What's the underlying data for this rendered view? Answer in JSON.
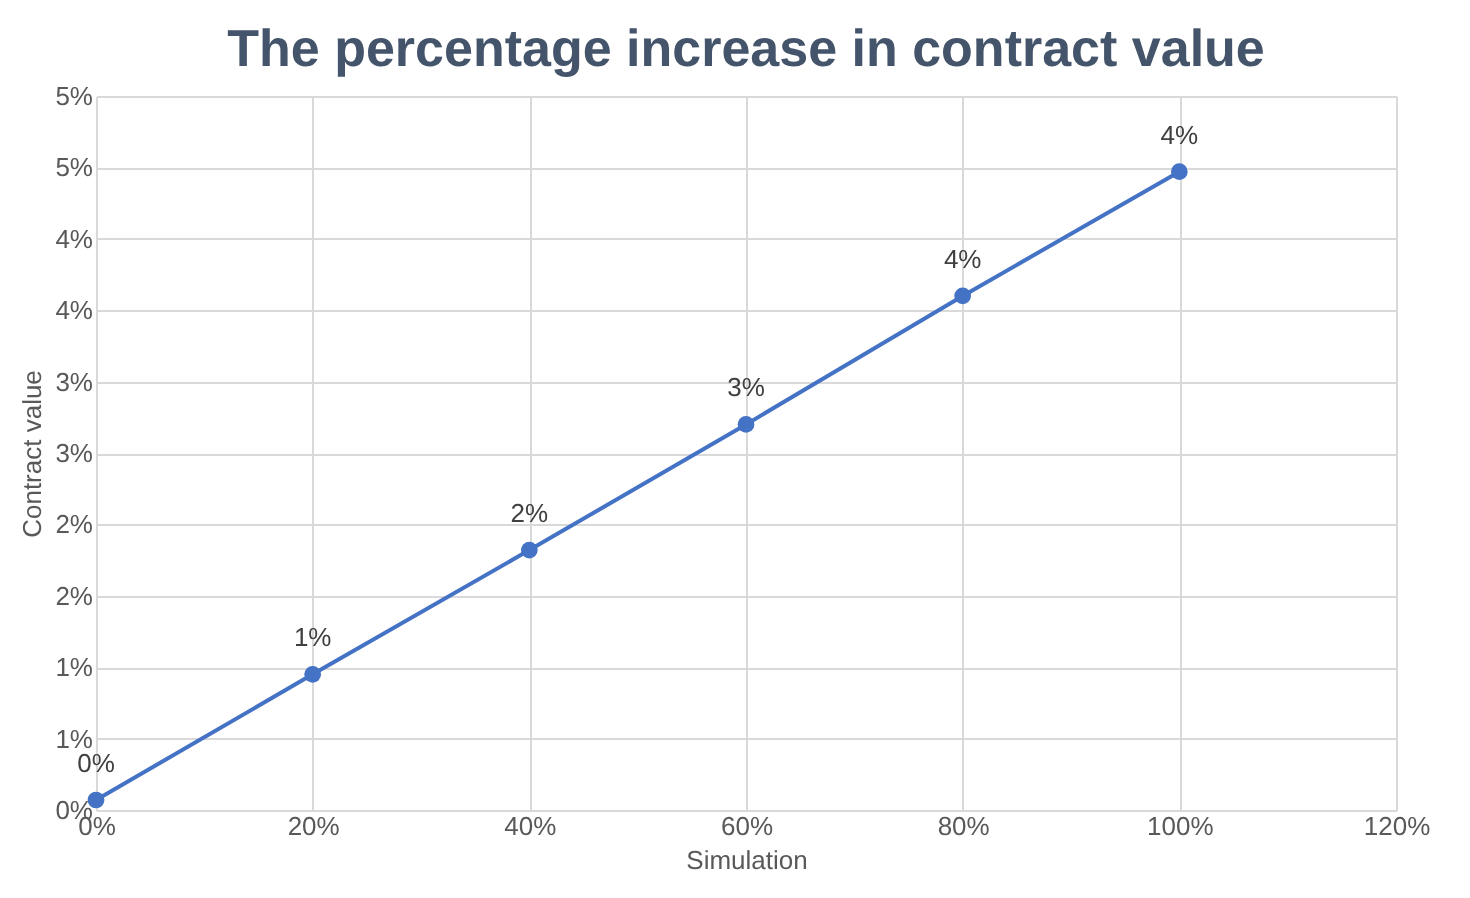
{
  "chart_data": {
    "type": "line",
    "title": "The percentage increase in contract value",
    "xlabel": "Simulation",
    "ylabel": "Contract value",
    "x": [
      0,
      20,
      40,
      60,
      80,
      100
    ],
    "series": [
      {
        "color": "#4472c4",
        "values": [
          0.07,
          0.95,
          1.82,
          2.7,
          3.6,
          4.47
        ],
        "value_labels": [
          "0%",
          "1%",
          "2%",
          "3%",
          "4%",
          "4%"
        ]
      }
    ],
    "xlim": [
      0,
      120
    ],
    "xticks": [
      {
        "value": 0,
        "label": "0%"
      },
      {
        "value": 20,
        "label": "20%"
      },
      {
        "value": 40,
        "label": "40%"
      },
      {
        "value": 60,
        "label": "60%"
      },
      {
        "value": 80,
        "label": "80%"
      },
      {
        "value": 100,
        "label": "100%"
      },
      {
        "value": 120,
        "label": "120%"
      }
    ],
    "ylim": [
      0,
      5
    ],
    "yticks": [
      {
        "value": 0,
        "label": "0%"
      },
      {
        "value": 0.5,
        "label": "1%"
      },
      {
        "value": 1,
        "label": "1%"
      },
      {
        "value": 1.5,
        "label": "2%"
      },
      {
        "value": 2,
        "label": "2%"
      },
      {
        "value": 2.5,
        "label": "3%"
      },
      {
        "value": 3,
        "label": "3%"
      },
      {
        "value": 3.5,
        "label": "4%"
      },
      {
        "value": 4,
        "label": "4%"
      },
      {
        "value": 4.5,
        "label": "5%"
      },
      {
        "value": 5,
        "label": "5%"
      }
    ],
    "grid": true,
    "marker": "circle",
    "line_style": "solid",
    "legend": false
  }
}
